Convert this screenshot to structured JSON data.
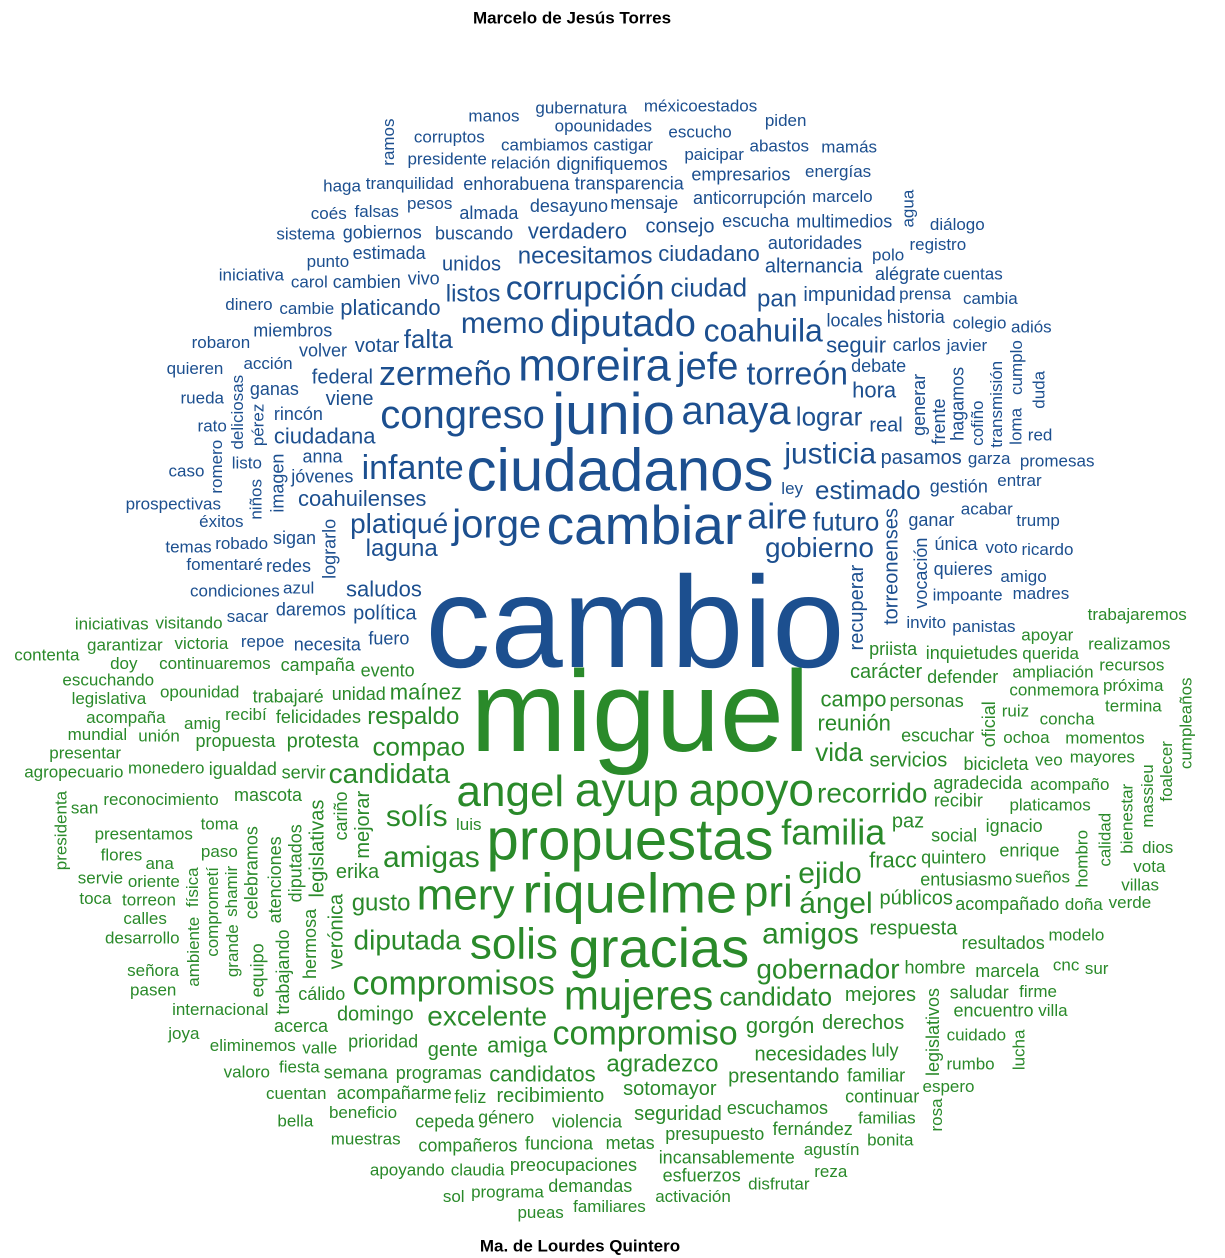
{
  "chart_data": {
    "type": "wordcloud",
    "series": [
      {
        "name": "Marcelo de Jesús Torres",
        "color": "#1c4f8f",
        "words": [
          "cambio",
          "ciudadanos",
          "junio",
          "cambiar",
          "moreira",
          "anaya",
          "congreso",
          "jorge",
          "diputado",
          "jefe",
          "aire",
          "zermeño",
          "corrupción",
          "infante",
          "coahuila",
          "torreón",
          "justicia",
          "memo",
          "gobierno",
          "platiqué",
          "lograr",
          "ciudad",
          "estimado",
          "futuro",
          "falta",
          "laguna",
          "necesitamos",
          "listos",
          "pan",
          "coahuilenses",
          "ciudadano",
          "saludos",
          "seguir",
          "verdadero",
          "ciudadana",
          "platicando",
          "hora",
          "real",
          "recuperar",
          "unidos",
          "política",
          "viene",
          "votar",
          "consejo",
          "pasamos",
          "torreonenses",
          "alternancia",
          "impunidad",
          "federal",
          "jóvenes",
          "debate",
          "locales",
          "lograrlo",
          "anna",
          "fuero",
          "vivo",
          "buscando",
          "desayuno",
          "mensaje",
          "generar",
          "escucha",
          "autoridades",
          "transparencia",
          "ganar",
          "almada",
          "anticorrupción",
          "vocación",
          "rincón",
          "cambien",
          "volver",
          "carlos",
          "estimada",
          "gestión",
          "frente",
          "sigan",
          "daremos",
          "enhorabuena",
          "historia",
          "dignifiquemos",
          "necesita",
          "imagen",
          "única",
          "redes",
          "miembros",
          "gobiernos",
          "empresarios",
          "ganas",
          "hagamos",
          "multimedios",
          "alégrate",
          "quieres",
          "cambie",
          "prensa",
          "pesos",
          "cofiño",
          "azul",
          "invito",
          "impoante",
          "garza",
          "ley",
          "acabar",
          "niños",
          "acción",
          "relación",
          "polo",
          "listo",
          "javier",
          "castigar",
          "pérez",
          "paicipar",
          "carol",
          "robado",
          "cambiamos",
          "marcelo",
          "tranquilidad",
          "transmisión",
          "punto",
          "falsas",
          "presidente",
          "opounidades",
          "condiciones",
          "colegio",
          "deliciosas",
          "voto",
          "escucho",
          "entrar",
          "éxitos",
          "fomentaré",
          "panistas",
          "romero",
          "abastos",
          "energías",
          "repoe",
          "sacar",
          "registro",
          "sistema",
          "loma",
          "rato",
          "dinero",
          "cuentas",
          "corruptos",
          "cambia",
          "gubernatura",
          "cumplo",
          "trump",
          "méxicoestados",
          "robaron",
          "amigo",
          "iniciativa",
          "rueda",
          "agua",
          "coés",
          "red",
          "manos",
          "promesas",
          "quieren",
          "caso",
          "duda",
          "haga",
          "ricardo",
          "mamás",
          "diálogo",
          "prospectivas",
          "temas",
          "ramos",
          "madres",
          "piden",
          "adiós"
        ],
        "values": [
          130,
          60,
          58,
          55,
          45,
          40,
          40,
          40,
          38,
          38,
          36,
          34,
          34,
          34,
          32,
          32,
          30,
          30,
          28,
          28,
          26,
          26,
          26,
          26,
          26,
          24,
          24,
          24,
          24,
          22,
          22,
          22,
          22,
          22,
          22,
          22,
          22,
          20,
          20,
          20,
          20,
          20,
          20,
          20,
          20,
          20,
          20,
          20,
          20,
          18,
          18,
          18,
          18,
          18,
          18,
          18,
          18,
          18,
          18,
          18,
          18,
          18,
          18,
          18,
          18,
          18,
          18,
          18,
          18,
          18,
          18,
          18,
          18,
          18,
          18,
          18,
          18,
          18,
          18,
          18,
          18,
          18,
          18,
          18,
          18,
          18,
          18,
          18,
          18,
          18,
          18,
          17,
          17,
          17,
          17,
          17,
          17,
          17,
          17,
          17,
          17,
          17,
          17,
          17,
          17,
          17,
          17,
          17,
          17,
          17,
          17,
          17,
          17,
          17,
          17,
          17,
          17,
          17,
          17,
          17,
          17,
          17,
          17,
          17,
          17,
          17,
          17,
          17,
          17,
          17,
          17,
          17,
          17,
          17,
          17,
          17,
          17,
          17,
          17,
          17,
          17,
          17,
          17,
          17,
          17,
          17,
          17,
          17,
          17,
          17,
          17,
          17,
          17,
          17,
          17,
          17,
          17,
          17,
          17,
          17,
          17,
          17,
          17,
          17,
          17,
          17,
          17,
          17
        ]
      },
      {
        "name": "Ma. de Lourdes Quintero",
        "color": "#2a8a2a",
        "words": [
          "miguel",
          "propuestas",
          "riquelme",
          "gracias",
          "ayup",
          "apoyo",
          "angel",
          "pri",
          "solis",
          "mery",
          "mujeres",
          "familia",
          "compromiso",
          "compromisos",
          "amigas",
          "amigos",
          "ejido",
          "ángel",
          "solís",
          "gobernador",
          "candidata",
          "excelente",
          "recorrido",
          "diputada",
          "candidato",
          "compao",
          "vida",
          "respaldo",
          "agradezco",
          "gusto",
          "reunión",
          "gorgón",
          "amiga",
          "fracc",
          "maínez",
          "campo",
          "candidatos",
          "erika",
          "mejorar",
          "servicios",
          "sotomayor",
          "públicos",
          "necesidades",
          "respuesta",
          "paz",
          "verónica",
          "recibimiento",
          "mejores",
          "presentando",
          "gente",
          "derechos",
          "seguridad",
          "legislativas",
          "carácter",
          "domingo",
          "protesta",
          "evento",
          "escuchar",
          "quintero",
          "cariño",
          "unidad",
          "violencia",
          "social",
          "programas",
          "personas",
          "entusiasmo",
          "diputados",
          "escuchamos",
          "recibir",
          "prioridad",
          "felicidades",
          "hombre",
          "servir",
          "hermosa",
          "presupuesto",
          "género",
          "agradecida",
          "priista",
          "feliz",
          "metas",
          "atenciones",
          "funciona",
          "mascota",
          "cálido",
          "acompañarme",
          "campaña",
          "acompañado",
          "legislativos",
          "bicicleta",
          "familiar",
          "incansablemente",
          "preocupaciones",
          "compañeros",
          "cepeda",
          "celebramos",
          "trabajaré",
          "defender",
          "ignacio",
          "fernández",
          "resultados",
          "semana",
          "trabajando",
          "continuar",
          "saludar",
          "igualdad",
          "acerca",
          "esfuerzos",
          "inquietudes",
          "oficial",
          "luly",
          "demandas",
          "propuesta",
          "enrique",
          "encuentro",
          "marcela",
          "equipo",
          "beneficio",
          "cuidado",
          "familias",
          "valle",
          "agustín",
          "recibí",
          "shamir",
          "paso",
          "sueños",
          "ochoa",
          "claudia",
          "platicamos",
          "activación",
          "grande",
          "toma",
          "fiesta",
          "ruiz",
          "rumbo",
          "familiares",
          "programa",
          "comprometí",
          "continuaremos",
          "muestras",
          "eliminemos",
          "acompaño",
          "internacional",
          "espero",
          "física",
          "reconocimiento",
          "disfrutar",
          "apoyando",
          "cuentan",
          "veo",
          "conmemora",
          "hombro",
          "opounidad",
          "bonita",
          "firme",
          "pueas",
          "ampliación",
          "monedero",
          "ambiente",
          "presentamos",
          "concha",
          "doña",
          "modelo",
          "amig",
          "reza",
          "rosa",
          "querida",
          "cnc",
          "mayores",
          "villa",
          "valoro",
          "bella",
          "lucha",
          "luis",
          "oriente",
          "apoyar",
          "torreon",
          "momentos",
          "victoria",
          "calidad",
          "ana",
          "desarrollo",
          "unión",
          "calles",
          "acompaña",
          "señora",
          "bienestar",
          "verde",
          "visitando",
          "joya",
          "pasen",
          "flores",
          "termina",
          "massieu",
          "legislativa",
          "villas",
          "realizamos",
          "escuchando",
          "vota",
          "sol",
          "foalecer",
          "próxima",
          "agropecuario",
          "servie",
          "recursos",
          "mundial",
          "presentar",
          "cumpleaños",
          "sur",
          "garantizar",
          "trabajaremos",
          "dios",
          "toca",
          "san",
          "presidenta",
          "iniciativas",
          "contenta",
          "doy"
        ],
        "values": [
          115,
          58,
          56,
          56,
          48,
          46,
          44,
          44,
          44,
          44,
          42,
          36,
          34,
          34,
          30,
          30,
          30,
          30,
          30,
          28,
          28,
          28,
          28,
          28,
          26,
          26,
          26,
          24,
          24,
          24,
          22,
          22,
          22,
          22,
          22,
          22,
          22,
          20,
          20,
          20,
          20,
          20,
          20,
          20,
          20,
          20,
          20,
          20,
          20,
          20,
          20,
          20,
          20,
          20,
          20,
          20,
          18,
          18,
          18,
          18,
          18,
          18,
          18,
          18,
          18,
          18,
          18,
          18,
          18,
          18,
          18,
          18,
          18,
          18,
          18,
          18,
          18,
          18,
          18,
          18,
          18,
          18,
          18,
          18,
          18,
          18,
          18,
          18,
          18,
          18,
          18,
          18,
          18,
          18,
          18,
          18,
          18,
          18,
          18,
          18,
          18,
          18,
          18,
          18,
          18,
          18,
          18,
          18,
          18,
          18,
          18,
          18,
          18,
          18,
          18,
          18,
          17,
          17,
          17,
          17,
          17,
          17,
          17,
          17,
          17,
          17,
          17,
          17,
          17,
          17,
          17,
          17,
          17,
          17,
          17,
          17,
          17,
          17,
          17,
          17,
          17,
          17,
          17,
          17,
          17,
          17,
          17,
          17,
          17,
          17,
          17,
          17,
          17,
          17,
          17,
          17,
          17,
          17,
          17,
          17,
          17,
          17,
          17,
          17,
          17,
          17,
          17,
          17,
          17,
          17,
          17,
          17,
          17,
          17,
          17,
          17,
          17,
          17,
          17,
          17,
          17,
          17,
          17,
          17,
          17,
          17,
          17,
          17,
          17,
          17,
          17,
          17,
          17,
          17,
          17,
          17,
          17,
          17,
          17,
          17,
          17,
          17,
          17,
          17,
          17,
          17,
          17,
          17,
          17,
          17,
          17,
          17,
          17,
          17,
          17,
          17,
          17
        ]
      }
    ]
  }
}
